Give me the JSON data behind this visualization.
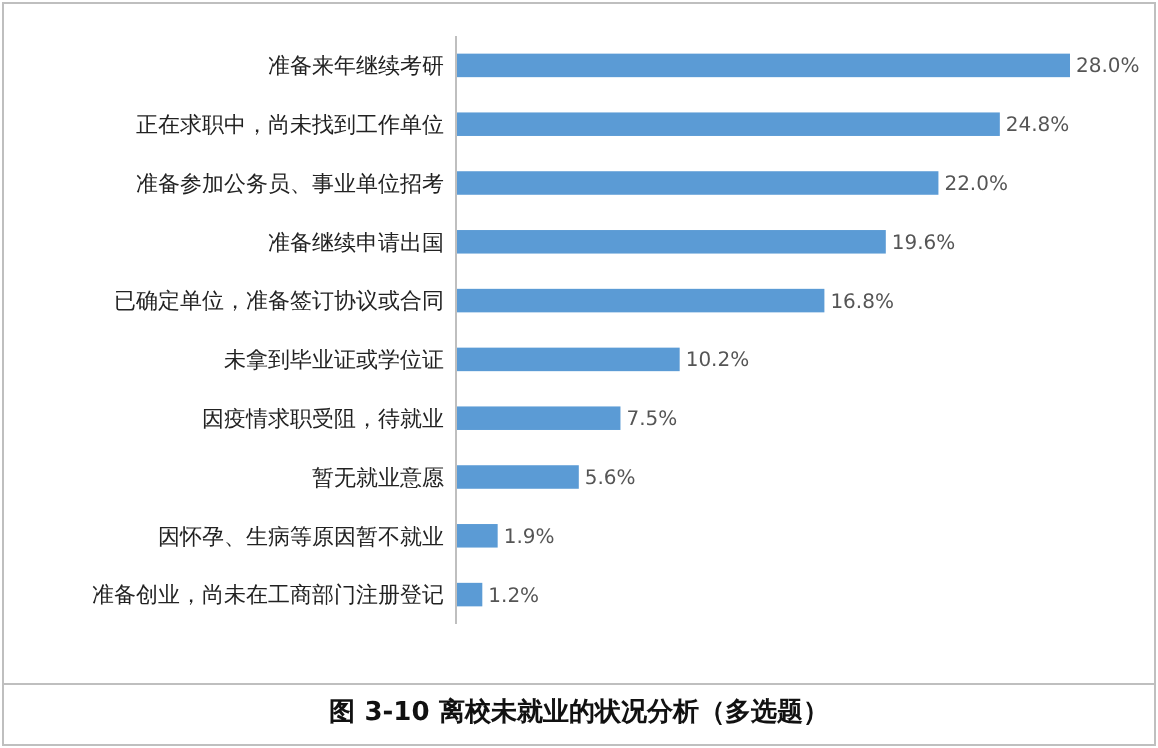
{
  "chart_data": {
    "type": "bar",
    "orientation": "horizontal",
    "title": "图 3-10  离校未就业的状况分析（多选题）",
    "categories": [
      "准备来年继续考研",
      "正在求职中，尚未找到工作单位",
      "准备参加公务员、事业单位招考",
      "准备继续申请出国",
      "已确定单位，准备签订协议或合同",
      "未拿到毕业证或学位证",
      "因疫情求职受阻，待就业",
      "暂无就业意愿",
      "因怀孕、生病等原因暂不就业",
      "准备创业，尚未在工商部门注册登记"
    ],
    "values": [
      28.0,
      24.8,
      22.0,
      19.6,
      16.8,
      10.2,
      7.5,
      5.6,
      1.9,
      1.2
    ],
    "value_labels": [
      "28.0%",
      "24.8%",
      "22.0%",
      "19.6%",
      "16.8%",
      "10.2%",
      "7.5%",
      "5.6%",
      "1.9%",
      "1.2%"
    ],
    "color": "#5b9bd5",
    "xlim": [
      0,
      28.0
    ],
    "tick_labels": "y"
  }
}
